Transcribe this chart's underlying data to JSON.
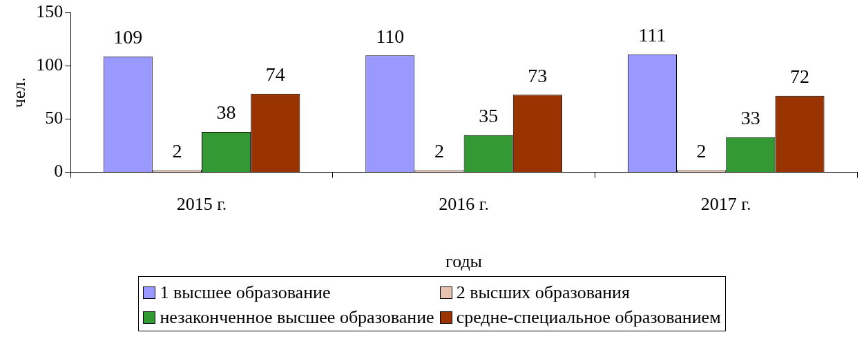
{
  "chart_data": {
    "type": "bar",
    "xlabel": "годы",
    "ylabel": "чел.",
    "categories": [
      "2015 г.",
      "2016 г.",
      "2017 г."
    ],
    "series": [
      {
        "name": "1 высшее образование",
        "color": "#9999ff",
        "values": [
          109,
          110,
          111
        ]
      },
      {
        "name": "2 высших образования",
        "color": "#e8c4b0",
        "values": [
          2,
          2,
          2
        ]
      },
      {
        "name": "незаконченное высшее образование",
        "color": "#339933",
        "values": [
          38,
          35,
          33
        ]
      },
      {
        "name": "средне-специальное образованием",
        "color": "#993300",
        "values": [
          74,
          73,
          72
        ]
      }
    ],
    "ylim": [
      0,
      150
    ],
    "yticks": [
      0,
      50,
      100,
      150
    ],
    "grid": false,
    "legend": "bottom",
    "data_labels": true
  }
}
